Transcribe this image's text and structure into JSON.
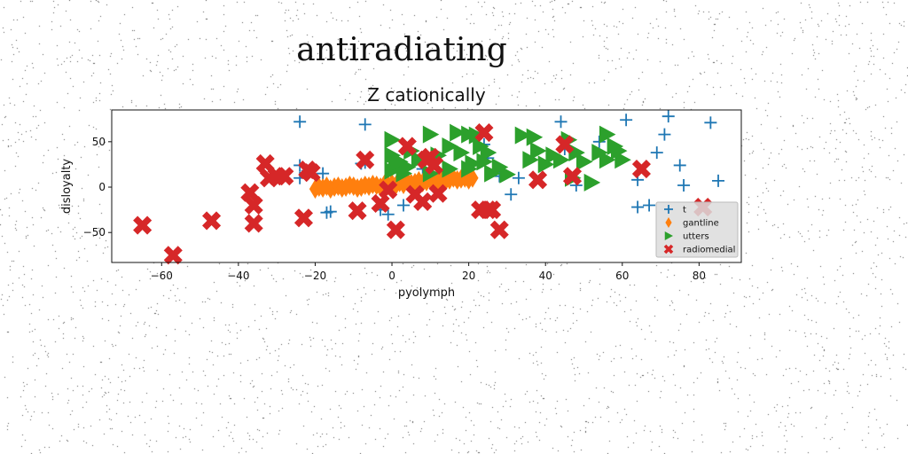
{
  "page_title": "antiradiating",
  "chart_data": {
    "type": "scatter",
    "title": "Z cationically",
    "xlabel": "pyolymph",
    "ylabel": "disloyalty",
    "xlim": [
      -73,
      91
    ],
    "ylim": [
      -83,
      85
    ],
    "xticks": [
      -60,
      -40,
      -20,
      0,
      20,
      40,
      60,
      80
    ],
    "yticks": [
      -50,
      0,
      50
    ],
    "grid": false,
    "legend_position": "lower-right",
    "series": [
      {
        "name": "t",
        "marker": "plus",
        "color": "#1f77b4",
        "points": [
          [
            -24,
            72
          ],
          [
            -7,
            69
          ],
          [
            -24,
            24
          ],
          [
            -22,
            18
          ],
          [
            -24,
            10
          ],
          [
            -18,
            15
          ],
          [
            -17,
            -28
          ],
          [
            -16,
            -27
          ],
          [
            -8,
            26
          ],
          [
            -7,
            27
          ],
          [
            -3,
            -25
          ],
          [
            -1,
            -30
          ],
          [
            3,
            -20
          ],
          [
            8,
            20
          ],
          [
            24,
            47
          ],
          [
            25,
            32
          ],
          [
            28,
            12
          ],
          [
            31,
            -8
          ],
          [
            33,
            10
          ],
          [
            44,
            72
          ],
          [
            45,
            42
          ],
          [
            48,
            2
          ],
          [
            54,
            50
          ],
          [
            61,
            74
          ],
          [
            64,
            -22
          ],
          [
            64,
            8
          ],
          [
            67,
            -20
          ],
          [
            69,
            38
          ],
          [
            71,
            58
          ],
          [
            72,
            78
          ],
          [
            75,
            24
          ],
          [
            76,
            2
          ],
          [
            83,
            71
          ],
          [
            85,
            7
          ]
        ]
      },
      {
        "name": "gantline",
        "marker": "thin_diamond",
        "color": "#ff7f0e",
        "points": [
          [
            -20,
            -2
          ],
          [
            -19,
            0
          ],
          [
            -18,
            -1
          ],
          [
            -17,
            1
          ],
          [
            -16,
            -2
          ],
          [
            -15,
            0
          ],
          [
            -14,
            1
          ],
          [
            -13,
            -1
          ],
          [
            -12,
            0
          ],
          [
            -11,
            2
          ],
          [
            -10,
            1
          ],
          [
            -9,
            -1
          ],
          [
            -8,
            0
          ],
          [
            -7,
            2
          ],
          [
            -6,
            1
          ],
          [
            -5,
            3
          ],
          [
            -4,
            2
          ],
          [
            -3,
            0
          ],
          [
            -2,
            3
          ],
          [
            -1,
            2
          ],
          [
            0,
            4
          ],
          [
            1,
            2
          ],
          [
            2,
            5
          ],
          [
            3,
            3
          ],
          [
            4,
            6
          ],
          [
            5,
            4
          ],
          [
            6,
            5
          ],
          [
            7,
            7
          ],
          [
            8,
            5
          ],
          [
            9,
            6
          ],
          [
            10,
            8
          ],
          [
            11,
            6
          ],
          [
            12,
            7
          ],
          [
            13,
            9
          ],
          [
            14,
            7
          ],
          [
            15,
            8
          ],
          [
            16,
            10
          ],
          [
            17,
            8
          ],
          [
            18,
            9
          ],
          [
            19,
            10
          ],
          [
            20,
            8
          ],
          [
            21,
            10
          ]
        ]
      },
      {
        "name": "utters",
        "marker": "triangle_right",
        "color": "#2ca02c",
        "points": [
          [
            0,
            52
          ],
          [
            0,
            35
          ],
          [
            1,
            25
          ],
          [
            0,
            18
          ],
          [
            3,
            15
          ],
          [
            5,
            40
          ],
          [
            7,
            30
          ],
          [
            10,
            58
          ],
          [
            12,
            35
          ],
          [
            15,
            45
          ],
          [
            17,
            60
          ],
          [
            18,
            38
          ],
          [
            20,
            58
          ],
          [
            21,
            26
          ],
          [
            22,
            57
          ],
          [
            23,
            45
          ],
          [
            24,
            28
          ],
          [
            25,
            38
          ],
          [
            26,
            15
          ],
          [
            28,
            22
          ],
          [
            30,
            14
          ],
          [
            34,
            57
          ],
          [
            36,
            30
          ],
          [
            37,
            55
          ],
          [
            38,
            40
          ],
          [
            40,
            25
          ],
          [
            42,
            35
          ],
          [
            44,
            30
          ],
          [
            46,
            52
          ],
          [
            47,
            10
          ],
          [
            48,
            38
          ],
          [
            50,
            28
          ],
          [
            52,
            5
          ],
          [
            54,
            38
          ],
          [
            56,
            58
          ],
          [
            56,
            30
          ],
          [
            58,
            45
          ],
          [
            59,
            40
          ],
          [
            60,
            30
          ],
          [
            20,
            20
          ],
          [
            15,
            20
          ],
          [
            10,
            15
          ],
          [
            2,
            28
          ],
          [
            4,
            22
          ]
        ]
      },
      {
        "name": "radiomedial",
        "marker": "x_filled",
        "color": "#d62728",
        "points": [
          [
            -65,
            -42
          ],
          [
            -57,
            -75
          ],
          [
            -47,
            -37
          ],
          [
            -37,
            -6
          ],
          [
            -36,
            -20
          ],
          [
            -36,
            -40
          ],
          [
            -33,
            26
          ],
          [
            -32,
            10
          ],
          [
            -30,
            12
          ],
          [
            -28,
            12
          ],
          [
            -22,
            19
          ],
          [
            -21,
            16
          ],
          [
            -23,
            -34
          ],
          [
            -9,
            -26
          ],
          [
            -7,
            30
          ],
          [
            -3,
            -18
          ],
          [
            -1,
            -3
          ],
          [
            1,
            -47
          ],
          [
            4,
            45
          ],
          [
            6,
            -8
          ],
          [
            8,
            -16
          ],
          [
            9,
            30
          ],
          [
            10,
            33
          ],
          [
            11,
            24
          ],
          [
            12,
            -7
          ],
          [
            23,
            -25
          ],
          [
            24,
            60
          ],
          [
            25,
            -25
          ],
          [
            26,
            -25
          ],
          [
            28,
            -47
          ],
          [
            38,
            8
          ],
          [
            45,
            47
          ],
          [
            47,
            12
          ],
          [
            65,
            20
          ],
          [
            81,
            -22
          ]
        ]
      }
    ]
  }
}
